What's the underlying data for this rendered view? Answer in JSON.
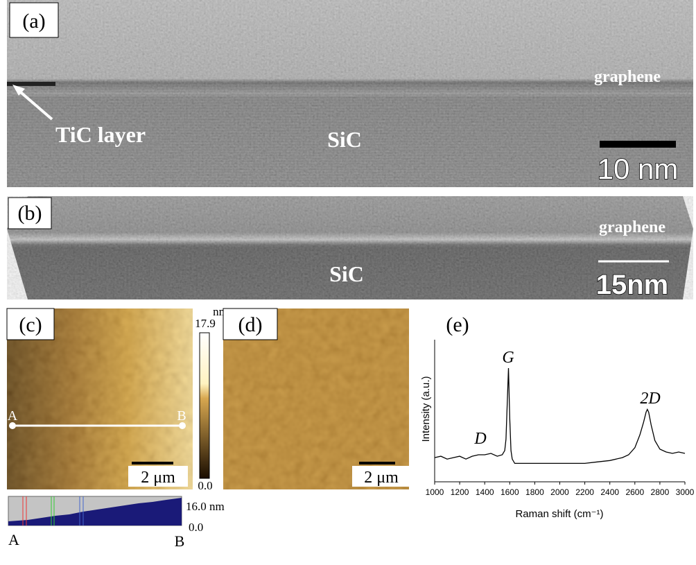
{
  "panels": {
    "a": {
      "label": "(a)",
      "graphene": "graphene",
      "tic": "TiC layer",
      "sic": "SiC",
      "scale_bar": "10 nm"
    },
    "b": {
      "label": "(b)",
      "graphene": "graphene",
      "sic": "SiC",
      "scale_bar": "15nm"
    },
    "c": {
      "label": "(c)",
      "scale_bar": "2 μm",
      "colorbar_unit": "nm",
      "colorbar_max": "17.9",
      "colorbar_min": "0.0",
      "line_start": "A",
      "line_end": "B",
      "profile_max": "16.0 nm",
      "profile_min": "0.0",
      "profile_start": "A",
      "profile_end": "B"
    },
    "d": {
      "label": "(d)",
      "scale_bar": "2 μm"
    },
    "e": {
      "label": "(e)"
    }
  },
  "chart_data": {
    "type": "line",
    "x_label": "Raman shift  (cm⁻¹)",
    "y_label": "Intensity  (a.u.)",
    "annotations": [
      "D",
      "G",
      "2D"
    ],
    "color": "#000000",
    "x": [
      1000,
      1050,
      1100,
      1150,
      1200,
      1250,
      1300,
      1350,
      1400,
      1450,
      1500,
      1540,
      1560,
      1570,
      1580,
      1590,
      1600,
      1610,
      1620,
      1640,
      1700,
      1750,
      1800,
      1900,
      2000,
      2100,
      2200,
      2300,
      2400,
      2500,
      2550,
      2600,
      2640,
      2670,
      2690,
      2700,
      2710,
      2730,
      2760,
      2800,
      2850,
      2900,
      2950,
      3000
    ],
    "values": [
      17,
      18,
      16,
      17,
      18,
      16,
      18,
      19,
      19,
      20,
      18,
      19,
      22,
      30,
      55,
      80,
      45,
      22,
      16,
      13,
      13,
      13,
      13,
      13,
      13,
      13,
      13,
      14,
      15,
      17,
      19,
      24,
      33,
      42,
      49,
      51,
      49,
      40,
      29,
      23,
      21,
      20,
      21,
      20
    ],
    "xlim": [
      1000,
      3000
    ],
    "xticks": [
      1000,
      1200,
      1400,
      1600,
      1800,
      2000,
      2200,
      2400,
      2600,
      2800,
      3000
    ],
    "ylim": [
      0,
      100
    ]
  }
}
